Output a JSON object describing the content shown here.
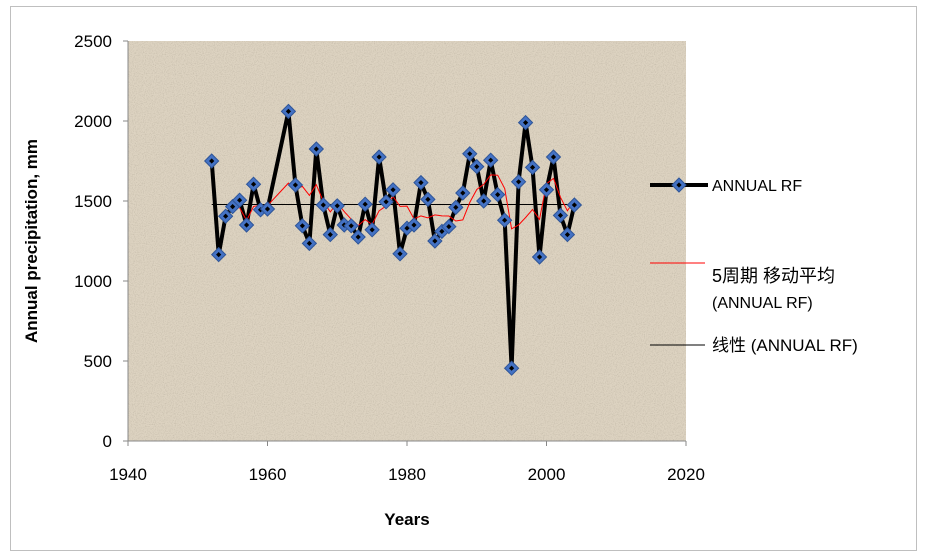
{
  "chart_data": {
    "type": "line",
    "title": "",
    "xlabel": "Years",
    "ylabel": "Annual precipitation, mm",
    "xlim": [
      1940,
      2020
    ],
    "ylim": [
      0,
      2500
    ],
    "x_ticks": [
      1940,
      1960,
      1980,
      2000,
      2020
    ],
    "y_ticks": [
      0,
      500,
      1000,
      1500,
      2000,
      2500
    ],
    "grid": false,
    "legend_position": "right",
    "colors": {
      "plot_area": "#ddd3c1",
      "annual": "#000000",
      "marker": "#4472c4",
      "moving_average": "#ff0000",
      "linear": "#000000"
    },
    "series": [
      {
        "name": "ANNUAL RF",
        "x": [
          1952,
          1953,
          1954,
          1955,
          1956,
          1957,
          1958,
          1959,
          1960,
          1963,
          1964,
          1965,
          1966,
          1967,
          1968,
          1969,
          1970,
          1971,
          1972,
          1973,
          1974,
          1975,
          1976,
          1977,
          1978,
          1979,
          1980,
          1981,
          1982,
          1983,
          1984,
          1985,
          1986,
          1987,
          1988,
          1989,
          1990,
          1991,
          1992,
          1993,
          1994,
          1995,
          1996,
          1997,
          1998,
          1999,
          2000,
          2001,
          2002,
          2003,
          2004
        ],
        "values": [
          1750,
          1165,
          1405,
          1465,
          1505,
          1350,
          1605,
          1445,
          1450,
          2060,
          1600,
          1345,
          1235,
          1825,
          1475,
          1290,
          1470,
          1350,
          1345,
          1275,
          1480,
          1320,
          1775,
          1495,
          1570,
          1170,
          1330,
          1350,
          1615,
          1510,
          1250,
          1310,
          1340,
          1460,
          1550,
          1795,
          1715,
          1500,
          1755,
          1540,
          1380,
          455,
          1620,
          1990,
          1710,
          1150,
          1570,
          1775,
          1410,
          1290,
          1475
        ],
        "style": "thick line with diamond markers"
      },
      {
        "name_line1": "5周期 移动平均",
        "name_line2": "(ANNUAL RF)",
        "x": [
          1956,
          1957,
          1958,
          1959,
          1960,
          1963,
          1964,
          1965,
          1966,
          1967,
          1968,
          1969,
          1970,
          1971,
          1972,
          1973,
          1974,
          1975,
          1976,
          1977,
          1978,
          1979,
          1980,
          1981,
          1982,
          1983,
          1984,
          1985,
          1986,
          1987,
          1988,
          1989,
          1990,
          1991,
          1992,
          1993,
          1994,
          1995,
          1996,
          1997,
          1998,
          1999,
          2000,
          2001,
          2002,
          2003,
          2004
        ],
        "values": [
          1458,
          1378,
          1466,
          1474,
          1471,
          1612,
          1575,
          1591,
          1535,
          1602,
          1497,
          1432,
          1489,
          1434,
          1386,
          1346,
          1384,
          1353,
          1439,
          1469,
          1528,
          1466,
          1468,
          1388,
          1407,
          1395,
          1413,
          1407,
          1406,
          1375,
          1382,
          1491,
          1572,
          1604,
          1663,
          1661,
          1578,
          1326,
          1350,
          1397,
          1447,
          1385,
          1608,
          1641,
          1523,
          1439,
          1504
        ],
        "style": "thin red line"
      },
      {
        "name": "线性 (ANNUAL RF)",
        "x": [
          1952,
          2004
        ],
        "values": [
          1478,
          1478
        ],
        "style": "thin black trend line"
      }
    ]
  }
}
